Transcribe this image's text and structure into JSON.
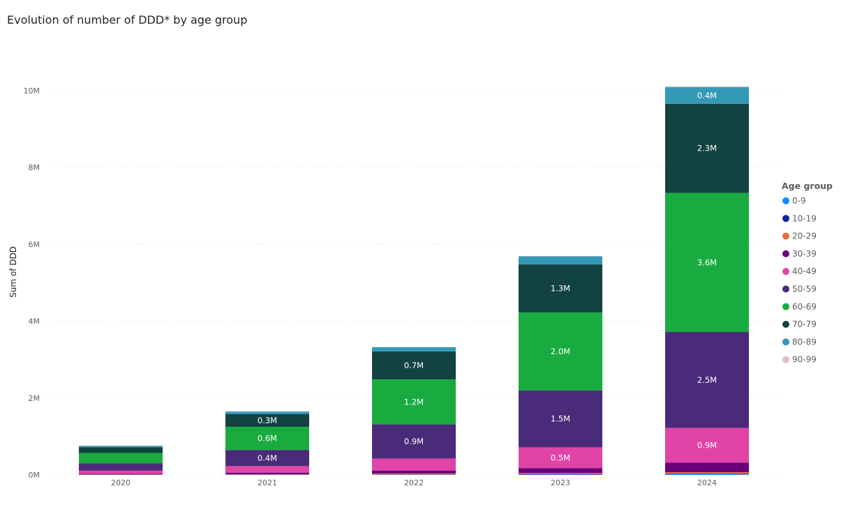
{
  "page": {
    "title": "Evolution of number of DDD* by age group"
  },
  "chart_data": {
    "type": "bar",
    "stacked": true,
    "title": "Evolution of number of DDD* by age group",
    "xlabel": "",
    "ylabel": "Sum of DDD",
    "ylim": [
      0,
      10000000
    ],
    "yticks": [
      0,
      2000000,
      4000000,
      6000000,
      8000000,
      10000000
    ],
    "ytick_labels": [
      "0M",
      "2M",
      "4M",
      "6M",
      "8M",
      "10M"
    ],
    "grid": true,
    "legend_title": "Age group",
    "legend_position": "right",
    "categories": [
      "2020",
      "2021",
      "2022",
      "2023",
      "2024"
    ],
    "series": [
      {
        "name": "0-9",
        "color": "#118DFF",
        "values": [
          2000,
          4000,
          6000,
          8000,
          15000
        ],
        "labels": [
          "",
          "",
          "",
          "",
          ""
        ]
      },
      {
        "name": "10-19",
        "color": "#12239E",
        "values": [
          3000,
          5000,
          8000,
          10000,
          15000
        ],
        "labels": [
          "",
          "",
          "",
          "",
          ""
        ]
      },
      {
        "name": "20-29",
        "color": "#E66C37",
        "values": [
          5000,
          10000,
          20000,
          30000,
          40000
        ],
        "labels": [
          "",
          "",
          "",
          "",
          ""
        ]
      },
      {
        "name": "30-39",
        "color": "#6B007B",
        "values": [
          20000,
          40000,
          80000,
          130000,
          250000
        ],
        "labels": [
          "",
          "",
          "",
          "",
          ""
        ]
      },
      {
        "name": "40-49",
        "color": "#E044A7",
        "values": [
          80000,
          170000,
          310000,
          540000,
          900000
        ],
        "labels": [
          "",
          "",
          "",
          "0.5M",
          "0.9M"
        ]
      },
      {
        "name": "50-59",
        "color": "#4A2B7A",
        "values": [
          190000,
          420000,
          890000,
          1480000,
          2500000
        ],
        "labels": [
          "",
          "0.4M",
          "0.9M",
          "1.5M",
          "2.5M"
        ]
      },
      {
        "name": "60-69",
        "color": "#1AAB40",
        "values": [
          270000,
          600000,
          1170000,
          2030000,
          3620000
        ],
        "labels": [
          "",
          "0.6M",
          "1.2M",
          "2.0M",
          "3.6M"
        ]
      },
      {
        "name": "70-79",
        "color": "#124241",
        "values": [
          150000,
          330000,
          730000,
          1250000,
          2320000
        ],
        "labels": [
          "",
          "0.3M",
          "0.7M",
          "1.3M",
          "2.3M"
        ]
      },
      {
        "name": "80-89",
        "color": "#3599B8",
        "values": [
          35000,
          70000,
          110000,
          210000,
          430000
        ],
        "labels": [
          "",
          "",
          "",
          "",
          "0.4M"
        ]
      },
      {
        "name": "90-99",
        "color": "#DFBFBF",
        "values": [
          2000,
          3000,
          5000,
          8000,
          20000
        ],
        "labels": [
          "",
          "",
          "",
          "",
          ""
        ]
      }
    ]
  }
}
